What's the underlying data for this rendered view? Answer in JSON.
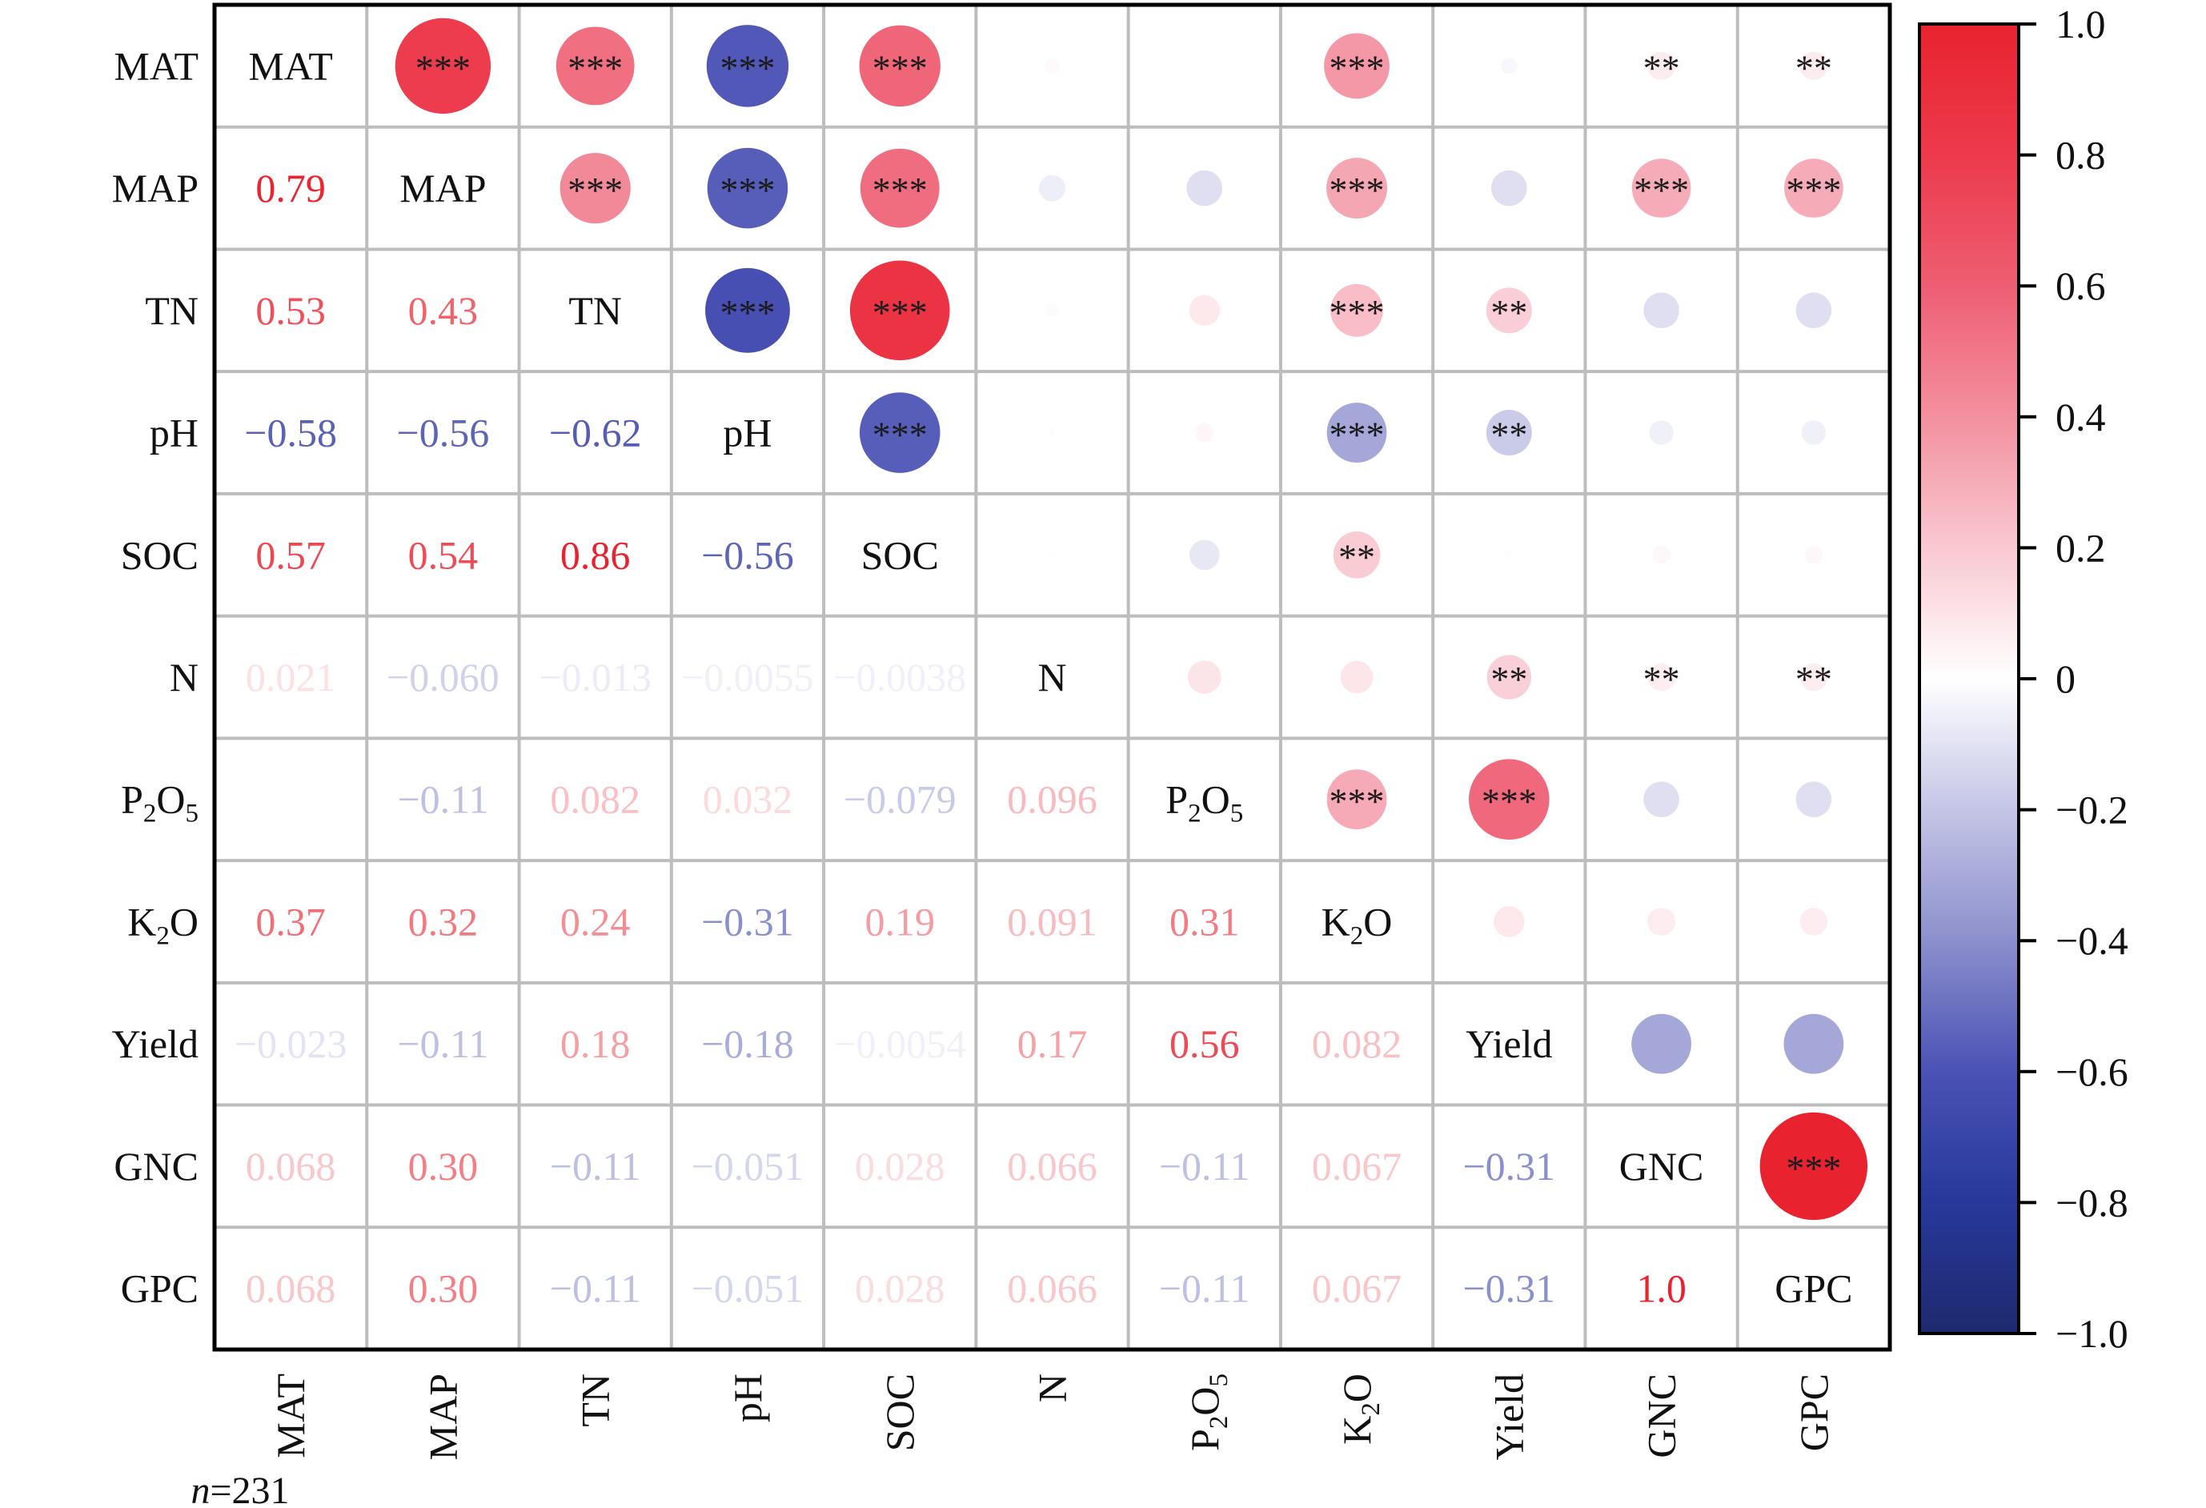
{
  "chart_data": {
    "type": "heatmap",
    "variables": [
      "MAT",
      "MAP",
      "TN",
      "pH",
      "SOC",
      "N",
      "P2O5",
      "K2O",
      "Yield",
      "GNC",
      "GPC"
    ],
    "variable_labels": [
      [
        "MAT"
      ],
      [
        "MAP"
      ],
      [
        "TN"
      ],
      [
        "pH"
      ],
      [
        "SOC"
      ],
      [
        "N"
      ],
      [
        "P",
        {
          "sub": "2"
        },
        "O",
        {
          "sub": "5"
        }
      ],
      [
        "K",
        {
          "sub": "2"
        },
        "O"
      ],
      [
        "Yield"
      ],
      [
        "GNC"
      ],
      [
        "GPC"
      ]
    ],
    "lower_triangle": [
      [],
      [
        0.79
      ],
      [
        0.53,
        0.43
      ],
      [
        -0.58,
        -0.56,
        -0.62
      ],
      [
        0.57,
        0.54,
        0.86,
        -0.56
      ],
      [
        0.021,
        -0.06,
        -0.013,
        -0.0055,
        -0.0038
      ],
      [
        null,
        -0.11,
        0.082,
        0.032,
        -0.079,
        0.096
      ],
      [
        0.37,
        0.32,
        0.24,
        -0.31,
        0.19,
        0.091,
        0.31
      ],
      [
        -0.023,
        -0.11,
        0.18,
        -0.18,
        -0.0054,
        0.17,
        0.56,
        0.082
      ],
      [
        0.068,
        0.3,
        -0.11,
        -0.051,
        0.028,
        0.066,
        -0.11,
        0.067,
        -0.31
      ],
      [
        0.068,
        0.3,
        -0.11,
        -0.051,
        0.028,
        0.066,
        -0.11,
        0.067,
        -0.31,
        1.0
      ]
    ],
    "lower_triangle_text": [
      [],
      [
        "0.79"
      ],
      [
        "0.53",
        "0.43"
      ],
      [
        "−0.58",
        "−0.56",
        "−0.62"
      ],
      [
        "0.57",
        "0.54",
        "0.86",
        "−0.56"
      ],
      [
        "0.021",
        "−0.060",
        "−0.013",
        "−0.0055",
        "−0.0038"
      ],
      [
        "",
        "−0.11",
        "0.082",
        "0.032",
        "−0.079",
        "0.096"
      ],
      [
        "0.37",
        "0.32",
        "0.24",
        "−0.31",
        "0.19",
        "0.091",
        "0.31"
      ],
      [
        "−0.023",
        "−0.11",
        "0.18",
        "−0.18",
        "−0.0054",
        "0.17",
        "0.56",
        "0.082"
      ],
      [
        "0.068",
        "0.30",
        "−0.11",
        "−0.051",
        "0.028",
        "0.066",
        "−0.11",
        "0.067",
        "−0.31"
      ],
      [
        "0.068",
        "0.30",
        "−0.11",
        "−0.051",
        "0.028",
        "0.066",
        "−0.11",
        "0.067",
        "−0.31",
        "1.0"
      ]
    ],
    "upper_significance": [
      [
        "",
        "***",
        "***",
        "***",
        "***",
        "",
        "",
        "***",
        "",
        "**",
        "**"
      ],
      [
        "",
        "",
        "***",
        "***",
        "***",
        "",
        "",
        "***",
        "",
        "***",
        "***"
      ],
      [
        "",
        "",
        "",
        "***",
        "***",
        "",
        "",
        "***",
        "**",
        "",
        ""
      ],
      [
        "",
        "",
        "",
        "",
        "***",
        "",
        "",
        "***",
        "**",
        "",
        ""
      ],
      [
        "",
        "",
        "",
        "",
        "",
        "",
        "",
        "**",
        "",
        "",
        ""
      ],
      [
        "",
        "",
        "",
        "",
        "",
        "",
        "",
        "",
        "**",
        "**",
        "**"
      ],
      [
        "",
        "",
        "",
        "",
        "",
        "",
        "",
        "***",
        "***",
        "",
        ""
      ],
      [
        "",
        "",
        "",
        "",
        "",
        "",
        "",
        "",
        "",
        "",
        ""
      ],
      [
        "",
        "",
        "",
        "",
        "",
        "",
        "",
        "",
        "",
        "",
        ""
      ],
      [
        "",
        "",
        "",
        "",
        "",
        "",
        "",
        "",
        "",
        "",
        "***"
      ],
      [
        "",
        "",
        "",
        "",
        "",
        "",
        "",
        "",
        "",
        "",
        ""
      ]
    ],
    "color_scale": {
      "min": -1.0,
      "max": 1.0,
      "ticks": [
        "1.0",
        "0.8",
        "0.6",
        "0.4",
        "0.2",
        "0",
        "−0.2",
        "−0.4",
        "−0.6",
        "−0.8",
        "−1.0"
      ],
      "tick_values": [
        1.0,
        0.8,
        0.6,
        0.4,
        0.2,
        0,
        -0.2,
        -0.4,
        -0.6,
        -0.8,
        -1.0
      ],
      "stops": [
        {
          "v": -1.0,
          "color": "#1e2a6e"
        },
        {
          "v": -0.8,
          "color": "#27389a"
        },
        {
          "v": -0.6,
          "color": "#4a52b5"
        },
        {
          "v": -0.4,
          "color": "#8c8fcc"
        },
        {
          "v": -0.2,
          "color": "#c4c5e6"
        },
        {
          "v": 0.0,
          "color": "#ffffff"
        },
        {
          "v": 0.2,
          "color": "#f9c8d1"
        },
        {
          "v": 0.4,
          "color": "#f3909f"
        },
        {
          "v": 0.6,
          "color": "#ee5e72"
        },
        {
          "v": 0.8,
          "color": "#ec3a4c"
        },
        {
          "v": 1.0,
          "color": "#e8232f"
        }
      ]
    },
    "sample_size": {
      "prefix": "n",
      "value": "=231"
    }
  }
}
